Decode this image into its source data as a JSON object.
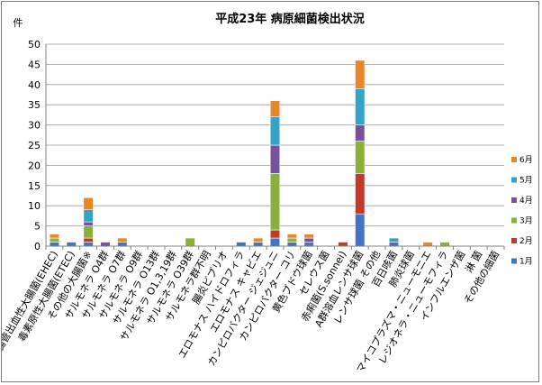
{
  "chart_data": {
    "type": "bar",
    "stacked": true,
    "title": "平成23年 病原細菌検出状況",
    "ylabel": "件",
    "xlabel": "",
    "ylim": [
      0,
      50
    ],
    "yticks": [
      0,
      5,
      10,
      15,
      20,
      25,
      30,
      35,
      40,
      45,
      50
    ],
    "grid": true,
    "legend_position": "right",
    "categories": [
      "腸管出血性大腸菌(EHEC)",
      "毒素原性大腸菌(ETEC)",
      "その他の大腸菌※",
      "サルモネラ O4群",
      "サルモネラ O7群",
      "サルモネラ O9群",
      "サルモネラ O13群",
      "サルモネラ O1,3,19群",
      "サルモネラ O39群",
      "サルモネラ群不明",
      "腸炎ビブリオ",
      "エロモナス ハイドロフィラ",
      "エロモナス キャビエ",
      "カンピロバクター ジェジュニ",
      "カンピロバクター コリ",
      "黄色ブドウ球菌",
      "セレウス菌",
      "赤痢菌(S.sonnei)",
      "A群溶血レンサ球菌",
      "レンサ球菌 その他",
      "百日咳菌",
      "肺炎球菌",
      "マイコプラズマ・ニューモニエ",
      "レジオネラ・ニューモフィラ",
      "インフルエンザ菌",
      "淋 菌",
      "その他の細菌"
    ],
    "series": [
      {
        "name": "1月",
        "color": "#4472c4",
        "values": [
          1,
          1,
          1,
          0,
          1,
          0,
          0,
          0,
          0,
          0,
          0,
          1,
          1,
          2,
          1,
          1,
          0,
          0,
          8,
          0,
          1,
          0,
          0,
          0,
          0,
          0,
          0
        ]
      },
      {
        "name": "2月",
        "color": "#c0392b",
        "values": [
          0,
          0,
          1,
          0,
          0,
          0,
          0,
          0,
          0,
          0,
          0,
          0,
          0,
          2,
          0,
          0,
          0,
          1,
          10,
          0,
          0,
          0,
          0,
          0,
          0,
          0,
          0
        ]
      },
      {
        "name": "3月",
        "color": "#8ab03c",
        "values": [
          1,
          0,
          3,
          0,
          0,
          0,
          0,
          0,
          2,
          0,
          0,
          0,
          0,
          14,
          1,
          0,
          0,
          0,
          8,
          0,
          0,
          0,
          0,
          1,
          0,
          0,
          0
        ]
      },
      {
        "name": "4月",
        "color": "#7551a0",
        "values": [
          0,
          0,
          1,
          1,
          0,
          0,
          0,
          0,
          0,
          0,
          0,
          0,
          0,
          7,
          0,
          1,
          0,
          0,
          4,
          0,
          0,
          0,
          0,
          0,
          0,
          0,
          0
        ]
      },
      {
        "name": "5月",
        "color": "#33a3c7",
        "values": [
          0,
          0,
          3,
          0,
          0,
          0,
          0,
          0,
          0,
          0,
          0,
          0,
          0,
          7,
          0,
          0,
          0,
          0,
          9,
          0,
          1,
          0,
          0,
          0,
          0,
          0,
          0
        ]
      },
      {
        "name": "6月",
        "color": "#e8862a",
        "values": [
          1,
          0,
          3,
          0,
          1,
          0,
          0,
          0,
          0,
          0,
          0,
          0,
          1,
          4,
          1,
          1,
          0,
          0,
          7,
          0,
          0,
          0,
          1,
          0,
          0,
          0,
          0
        ]
      }
    ]
  }
}
